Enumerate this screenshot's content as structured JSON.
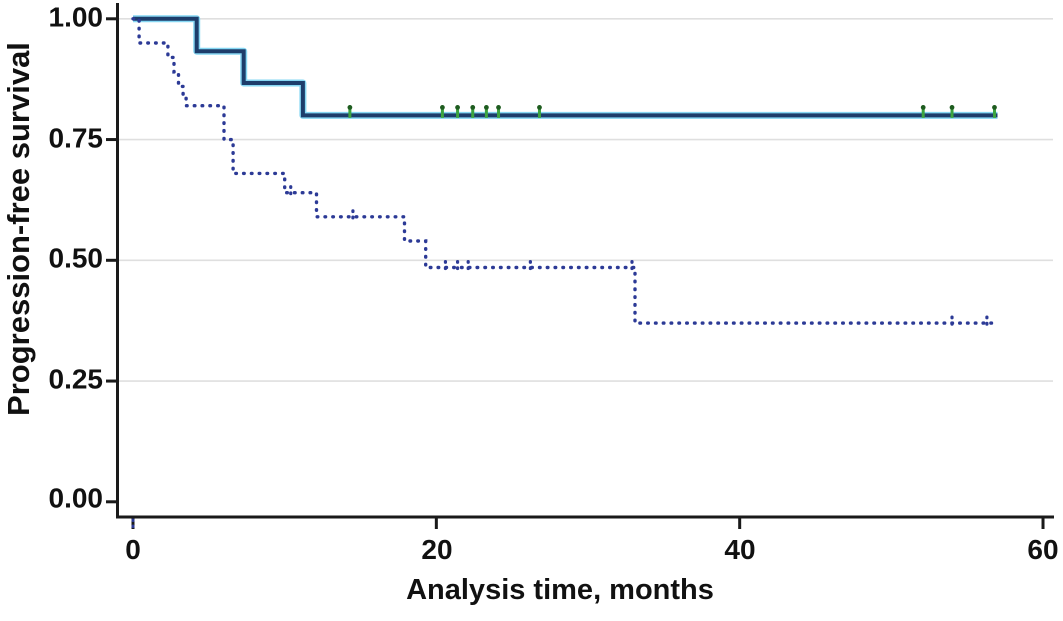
{
  "styles": {
    "background": "#ffffff",
    "axis_color": "#1a1a1a",
    "grid_color": "#dfdfdf",
    "text_color": "#111111"
  },
  "chart_data": {
    "type": "line",
    "subtype": "kaplan_meier_step",
    "title": "",
    "xlabel": "Analysis time, months",
    "ylabel": "Progression-free survival",
    "xlim": [
      0,
      60
    ],
    "ylim": [
      0,
      1
    ],
    "xticks": [
      0,
      20,
      40,
      60
    ],
    "yticks": [
      1.0,
      0.75,
      0.5,
      0.25,
      0.0
    ],
    "x_tick_labels": [
      "0",
      "20",
      "40",
      "60"
    ],
    "y_tick_labels": [
      "1.00",
      "0.75",
      "0.50",
      "0.25",
      "0.00"
    ],
    "grid": "horizontal",
    "legend": "none",
    "series": [
      {
        "name": "group-1-solid",
        "line_style": "solid",
        "color": "#1d3d6b",
        "halo_color": "#86d7f3",
        "steps": [
          [
            0,
            1.0
          ],
          [
            4.2,
            0.933
          ],
          [
            7.3,
            0.867
          ],
          [
            11.2,
            0.8
          ],
          [
            57.0,
            0.8
          ]
        ],
        "censor_months": [
          14.3,
          20.4,
          21.4,
          22.4,
          23.3,
          24.1,
          26.8,
          52.1,
          54.0,
          56.8
        ],
        "censor_color": "#3da43f",
        "censor_cap_color": "#1e5c1f"
      },
      {
        "name": "group-2-dotted",
        "line_style": "dotted",
        "color": "#2c3a96",
        "steps": [
          [
            0,
            1.0
          ],
          [
            0.4,
            0.95
          ],
          [
            2.3,
            0.92
          ],
          [
            2.7,
            0.89
          ],
          [
            3.0,
            0.86
          ],
          [
            3.3,
            0.84
          ],
          [
            3.5,
            0.82
          ],
          [
            6.0,
            0.75
          ],
          [
            6.6,
            0.68
          ],
          [
            10.0,
            0.64
          ],
          [
            12.1,
            0.59
          ],
          [
            17.9,
            0.54
          ],
          [
            19.3,
            0.485
          ],
          [
            33.1,
            0.37
          ],
          [
            56.7,
            0.37
          ]
        ],
        "censor_months": [
          10.4,
          14.5,
          20.6,
          21.4,
          22.1,
          26.2,
          32.9,
          54.0,
          56.3
        ],
        "censor_color": "#2c3a96"
      }
    ],
    "below_axis_tick": {
      "month": 0,
      "color": "#2c3a96"
    }
  }
}
